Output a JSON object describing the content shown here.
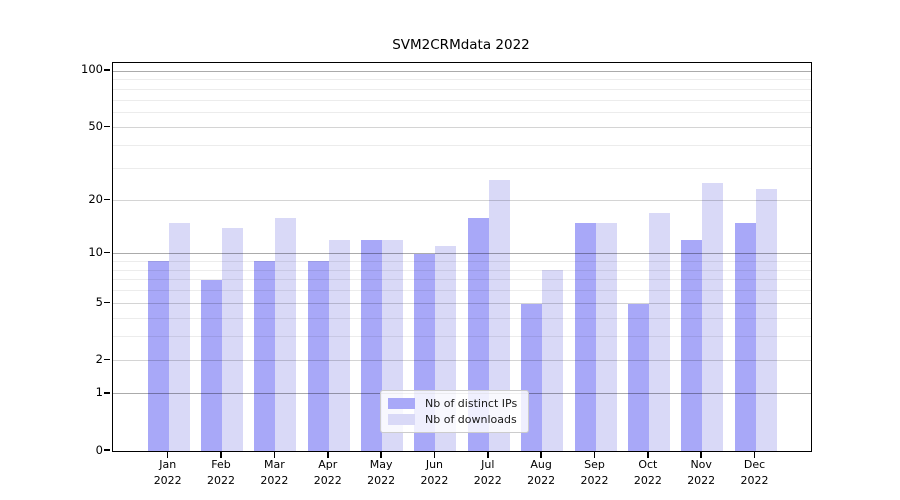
{
  "figure": {
    "title": "SVM2CRMdata 2022"
  },
  "chart_data": {
    "type": "bar",
    "title": "SVM2CRMdata 2022",
    "categories": [
      "Jan",
      "Feb",
      "Mar",
      "Apr",
      "May",
      "Jun",
      "Jul",
      "Aug",
      "Sep",
      "Oct",
      "Nov",
      "Dec"
    ],
    "x_tick_year": "2022",
    "series": [
      {
        "name": "Nb of distinct IPs",
        "color": "#a8a8f8",
        "values": [
          9,
          7,
          9,
          9,
          12,
          10,
          16,
          5,
          15,
          5,
          12,
          15
        ]
      },
      {
        "name": "Nb of downloads",
        "color": "#d9d9f7",
        "values": [
          15,
          14,
          16,
          12,
          12,
          11,
          26,
          8,
          15,
          17,
          25,
          23
        ]
      }
    ],
    "xlabel": "",
    "ylabel": "",
    "yscale": "log1p",
    "ylim": [
      0,
      110.3
    ],
    "yticks_labeled": [
      0,
      1,
      2,
      5,
      10,
      20,
      50,
      100
    ],
    "yticks_minor": [
      3,
      4,
      6,
      7,
      8,
      9,
      30,
      40,
      60,
      70,
      80,
      90
    ],
    "grid": "horizontal-on-top-of-bars",
    "legend_position": "lower-center-inside"
  }
}
